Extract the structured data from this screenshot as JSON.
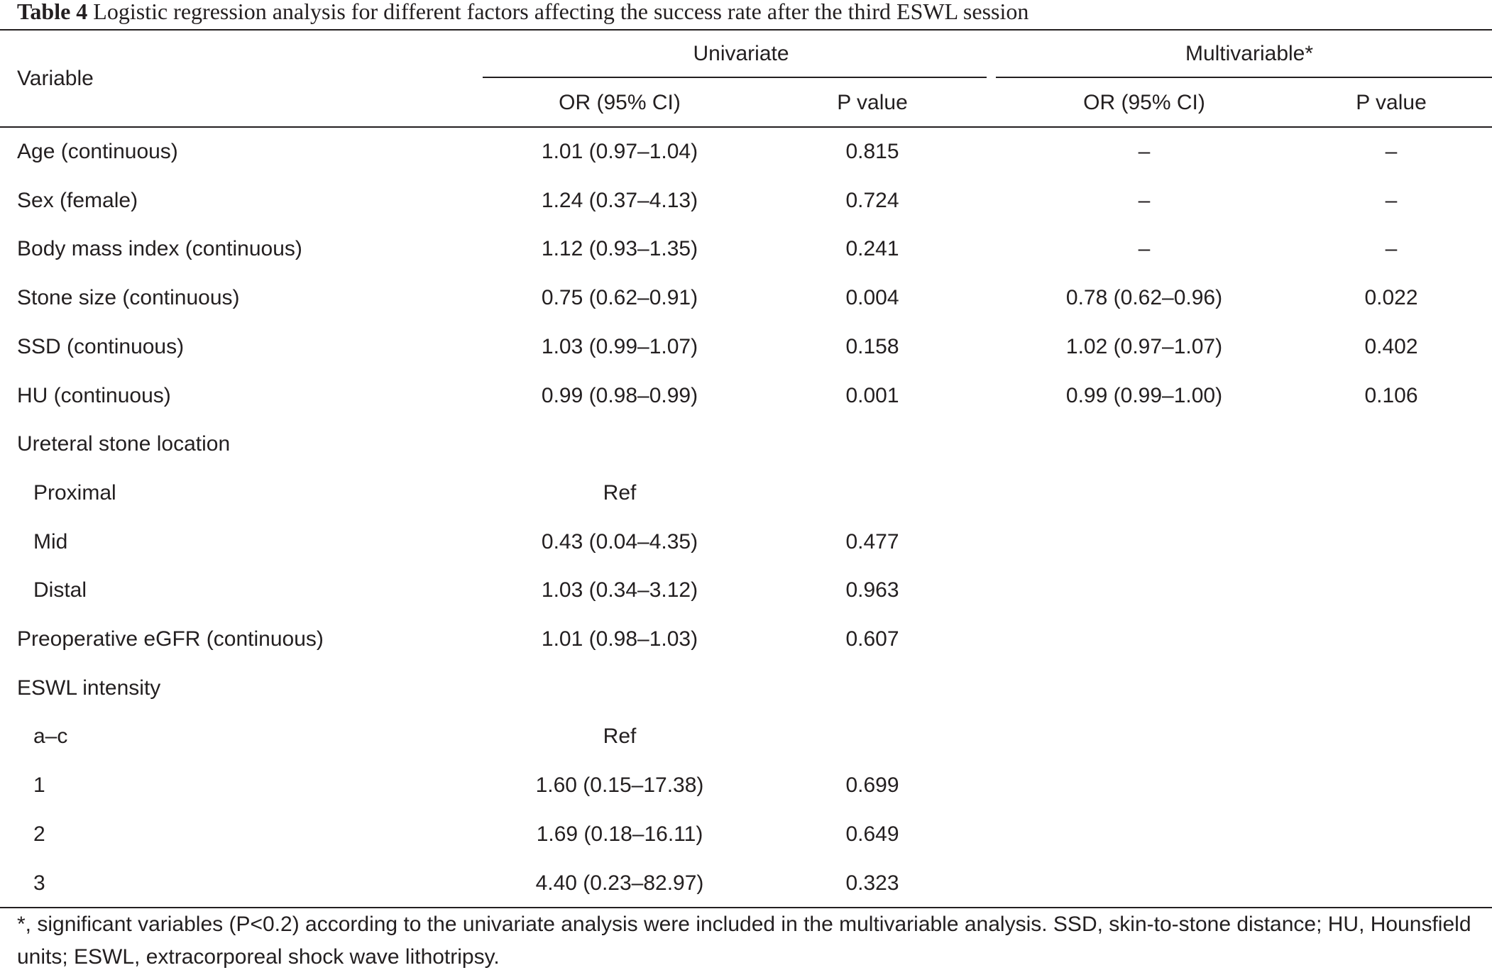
{
  "caption": {
    "label": "Table 4",
    "text": " Logistic regression analysis for different factors affecting the success rate after the third ESWL session"
  },
  "header": {
    "variable": "Variable",
    "univariate": "Univariate",
    "multivariable": "Multivariable*",
    "or_ci": "OR (95% CI)",
    "p_value": "P value"
  },
  "rows": [
    {
      "label": "Age (continuous)",
      "uni_or": "1.01 (0.97–1.04)",
      "uni_p": "0.815",
      "multi_or": "–",
      "multi_p": "–"
    },
    {
      "label": "Sex (female)",
      "uni_or": "1.24 (0.37–4.13)",
      "uni_p": "0.724",
      "multi_or": "–",
      "multi_p": "–"
    },
    {
      "label": "Body mass index (continuous)",
      "uni_or": "1.12 (0.93–1.35)",
      "uni_p": "0.241",
      "multi_or": "–",
      "multi_p": "–"
    },
    {
      "label": "Stone size (continuous)",
      "uni_or": "0.75 (0.62–0.91)",
      "uni_p": "0.004",
      "multi_or": "0.78 (0.62–0.96)",
      "multi_p": "0.022"
    },
    {
      "label": "SSD (continuous)",
      "uni_or": "1.03 (0.99–1.07)",
      "uni_p": "0.158",
      "multi_or": "1.02 (0.97–1.07)",
      "multi_p": "0.402"
    },
    {
      "label": "HU (continuous)",
      "uni_or": "0.99 (0.98–0.99)",
      "uni_p": "0.001",
      "multi_or": "0.99 (0.99–1.00)",
      "multi_p": "0.106"
    },
    {
      "label": "Ureteral stone location",
      "uni_or": "",
      "uni_p": "",
      "multi_or": "",
      "multi_p": ""
    },
    {
      "label": "Proximal",
      "uni_or": "Ref",
      "uni_p": "",
      "multi_or": "",
      "multi_p": ""
    },
    {
      "label": "Mid",
      "uni_or": "0.43 (0.04–4.35)",
      "uni_p": "0.477",
      "multi_or": "",
      "multi_p": ""
    },
    {
      "label": "Distal",
      "uni_or": "1.03 (0.34–3.12)",
      "uni_p": "0.963",
      "multi_or": "",
      "multi_p": ""
    },
    {
      "label": "Preoperative eGFR (continuous)",
      "uni_or": "1.01 (0.98–1.03)",
      "uni_p": "0.607",
      "multi_or": "",
      "multi_p": ""
    },
    {
      "label": "ESWL intensity",
      "uni_or": "",
      "uni_p": "",
      "multi_or": "",
      "multi_p": ""
    },
    {
      "label": "a–c",
      "uni_or": "Ref",
      "uni_p": "",
      "multi_or": "",
      "multi_p": ""
    },
    {
      "label": "1",
      "uni_or": "1.60 (0.15–17.38)",
      "uni_p": "0.699",
      "multi_or": "",
      "multi_p": ""
    },
    {
      "label": "2",
      "uni_or": "1.69 (0.18–16.11)",
      "uni_p": "0.649",
      "multi_or": "",
      "multi_p": ""
    },
    {
      "label": "3",
      "uni_or": "4.40 (0.23–82.97)",
      "uni_p": "0.323",
      "multi_or": "",
      "multi_p": ""
    }
  ],
  "footnote": "*, significant variables (P<0.2) according to the univariate analysis were included in the multivariable analysis. SSD, skin-to-stone distance; HU, Hounsfield units; ESWL, extracorporeal shock wave lithotripsy."
}
